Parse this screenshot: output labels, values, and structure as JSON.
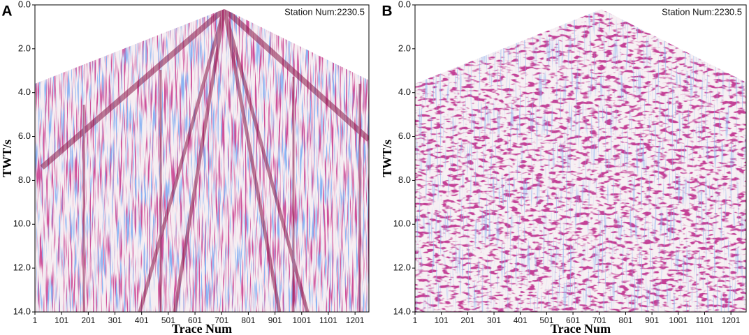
{
  "chart_data": [
    {
      "type": "seismic",
      "panel_label": "A",
      "annotation": "Station Num:2230.5",
      "xlabel": "Trace Num",
      "ylabel": "TWT/s",
      "y_inverted": true,
      "xlim": [
        1,
        1253
      ],
      "ylim": [
        0,
        14
      ],
      "xticks": [
        1,
        101,
        201,
        301,
        401,
        501,
        601,
        701,
        801,
        901,
        1001,
        1101,
        1201
      ],
      "yticks": [
        {
          "value": 0,
          "label": "0.0"
        },
        {
          "value": 2,
          "label": "2.0"
        },
        {
          "value": 4,
          "label": "4.0"
        },
        {
          "value": 6,
          "label": "6.0"
        },
        {
          "value": 8,
          "label": "8.0"
        },
        {
          "value": 10,
          "label": "10.0"
        },
        {
          "value": 12,
          "label": "12.0"
        },
        {
          "value": 14,
          "label": "14.0"
        }
      ]
    },
    {
      "type": "seismic",
      "panel_label": "B",
      "annotation": "Station Num:2230.5",
      "xlabel": "Trace Num",
      "ylabel": "TWT/s",
      "y_inverted": true,
      "xlim": [
        1,
        1259
      ],
      "ylim": [
        0,
        14
      ],
      "xticks": [
        1,
        101,
        201,
        301,
        401,
        501,
        601,
        701,
        801,
        901,
        1001,
        1101,
        1201
      ],
      "yticks": [
        {
          "value": 0,
          "label": "0.0"
        },
        {
          "value": 2,
          "label": "2.0"
        },
        {
          "value": 4,
          "label": "4.0"
        },
        {
          "value": 6,
          "label": "6.0"
        },
        {
          "value": 8,
          "label": "8.0"
        },
        {
          "value": 10,
          "label": "10.0"
        },
        {
          "value": 12,
          "label": "12.0"
        },
        {
          "value": 14,
          "label": "14.0"
        }
      ]
    }
  ]
}
